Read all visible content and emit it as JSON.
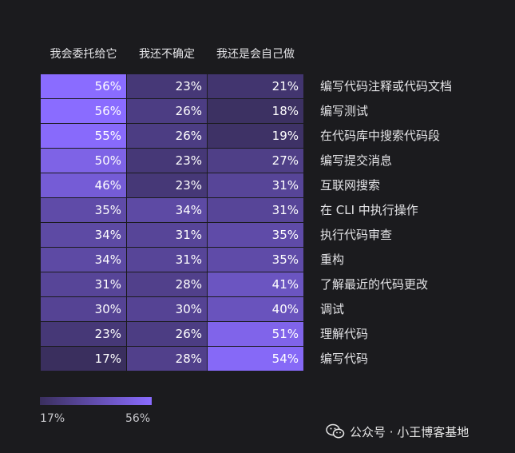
{
  "chart_data": {
    "type": "heatmap",
    "columns": [
      "我会委托给它",
      "我还不确定",
      "我还是会自己做"
    ],
    "rows": [
      {
        "label": "编写代码注释或代码文档",
        "values": [
          56,
          23,
          21
        ]
      },
      {
        "label": "编写测试",
        "values": [
          56,
          26,
          18
        ]
      },
      {
        "label": "在代码库中搜索代码段",
        "values": [
          55,
          26,
          19
        ]
      },
      {
        "label": "编写提交消息",
        "values": [
          50,
          23,
          27
        ]
      },
      {
        "label": "互联网搜索",
        "values": [
          46,
          23,
          31
        ]
      },
      {
        "label": "在 CLI 中执行操作",
        "values": [
          35,
          34,
          31
        ]
      },
      {
        "label": "执行代码审查",
        "values": [
          34,
          31,
          35
        ]
      },
      {
        "label": "重构",
        "values": [
          34,
          31,
          35
        ]
      },
      {
        "label": "了解最近的代码更改",
        "values": [
          31,
          28,
          41
        ]
      },
      {
        "label": "调试",
        "values": [
          30,
          30,
          40
        ]
      },
      {
        "label": "理解代码",
        "values": [
          23,
          26,
          51
        ]
      },
      {
        "label": "编写代码",
        "values": [
          17,
          28,
          54
        ]
      }
    ],
    "value_suffix": "%",
    "color_scale": {
      "min": 17,
      "max": 56,
      "min_color": "#3a2f5e",
      "max_color": "#8a6cff"
    },
    "legend": {
      "min_label": "17%",
      "max_label": "56%"
    }
  },
  "watermark": {
    "text": "公众号 · 小王博客基地",
    "icon": "wechat-icon"
  }
}
